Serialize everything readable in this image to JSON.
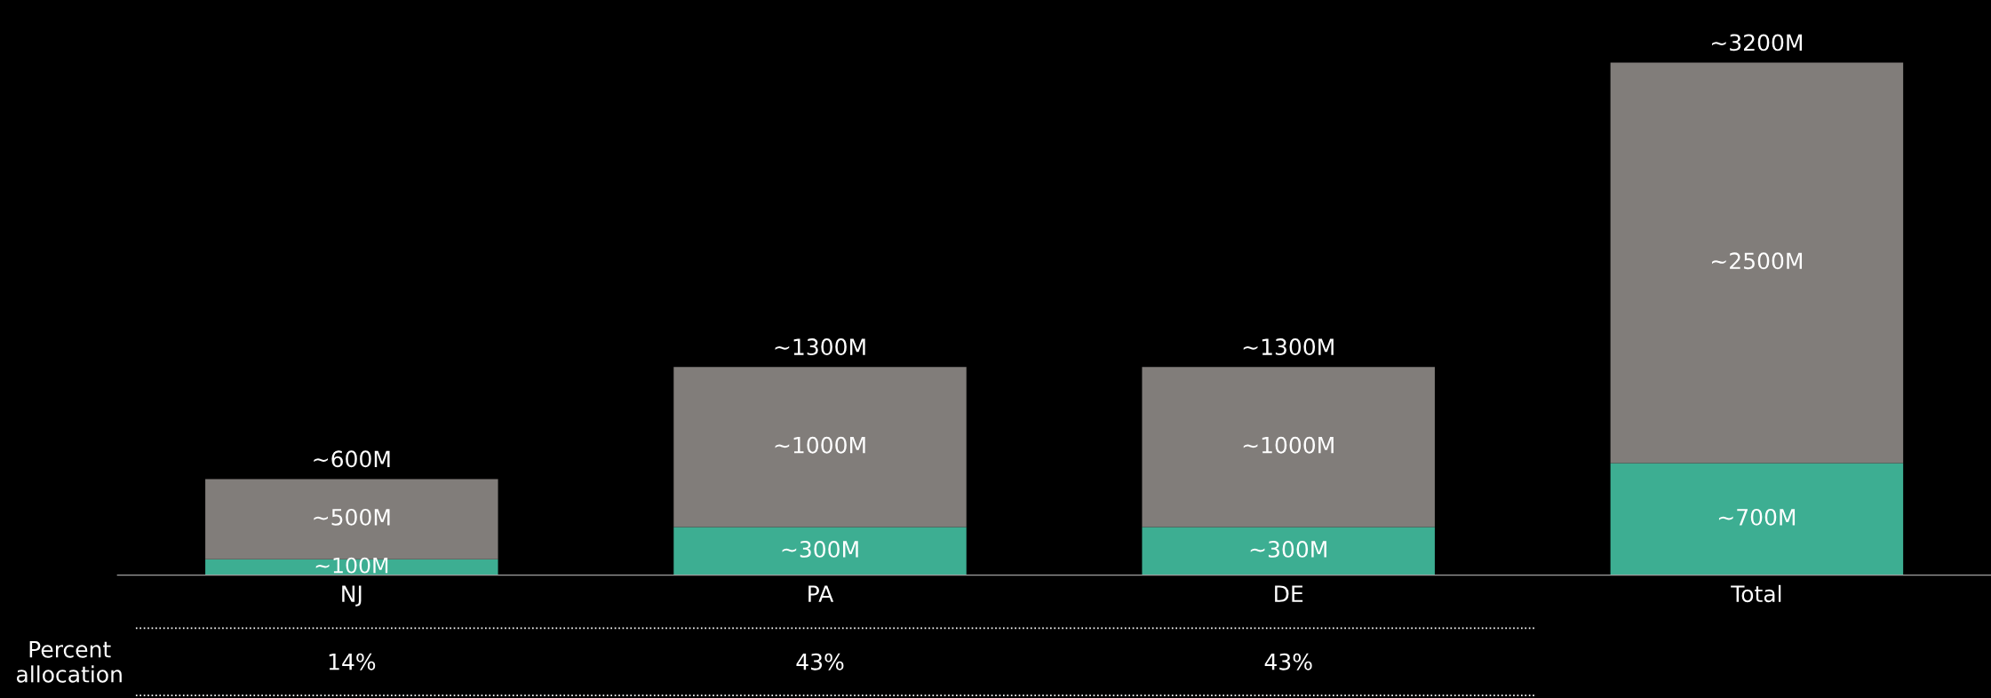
{
  "chart_data": {
    "type": "bar",
    "stacked": true,
    "categories": [
      "NJ",
      "PA",
      "DE",
      "Total"
    ],
    "series": [
      {
        "color": "#3dae92",
        "values": [
          100,
          300,
          300,
          700
        ],
        "value_labels": [
          "~100M",
          "~300M",
          "~300M",
          "~700M"
        ]
      },
      {
        "color": "#817d7a",
        "values": [
          500,
          1000,
          1000,
          2500
        ],
        "value_labels": [
          "~500M",
          "~1000M",
          "~1000M",
          "~2500M"
        ]
      }
    ],
    "totals": [
      "~600M",
      "~1300M",
      "~1300M",
      "~3200M"
    ],
    "annotations": [
      "Percent\nallocation",
      "14%",
      "43%",
      "43%"
    ],
    "grid": false,
    "legend": false
  }
}
